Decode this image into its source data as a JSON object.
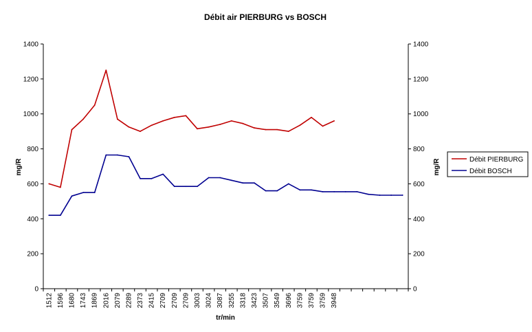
{
  "chart_data": {
    "type": "line",
    "title": "Débit air PIERBURG vs BOSCH",
    "xlabel": "tr/min",
    "ylabel": "mg/R",
    "ylabel_right": "mg/R",
    "ylim": [
      0,
      1400
    ],
    "yticks": [
      0,
      200,
      400,
      600,
      800,
      1000,
      1200,
      1400
    ],
    "grid": false,
    "legend_position": "right",
    "categories": [
      "1512",
      "1596",
      "1680",
      "1743",
      "1869",
      "2016",
      "2079",
      "2289",
      "2373",
      "2415",
      "2709",
      "2709",
      "2709",
      "3003",
      "3024",
      "3087",
      "3255",
      "3318",
      "3423",
      "3507",
      "3549",
      "3696",
      "3759",
      "3759",
      "3759",
      "3948",
      "",
      "",
      "",
      "",
      "",
      ""
    ],
    "series": [
      {
        "name": "Débit PIERBURG",
        "color": "#c00000",
        "values": [
          600,
          580,
          910,
          970,
          1050,
          1250,
          970,
          925,
          900,
          935,
          960,
          980,
          990,
          915,
          925,
          940,
          960,
          945,
          920,
          910,
          910,
          900,
          935,
          980,
          930,
          960,
          null,
          null,
          null,
          null,
          null,
          null
        ]
      },
      {
        "name": "Débit BOSCH",
        "color": "#000090",
        "values": [
          420,
          420,
          530,
          550,
          550,
          765,
          765,
          755,
          630,
          630,
          655,
          585,
          585,
          585,
          635,
          635,
          620,
          605,
          605,
          560,
          560,
          600,
          565,
          565,
          555,
          555,
          555,
          555,
          540,
          535,
          535,
          535
        ]
      }
    ]
  }
}
